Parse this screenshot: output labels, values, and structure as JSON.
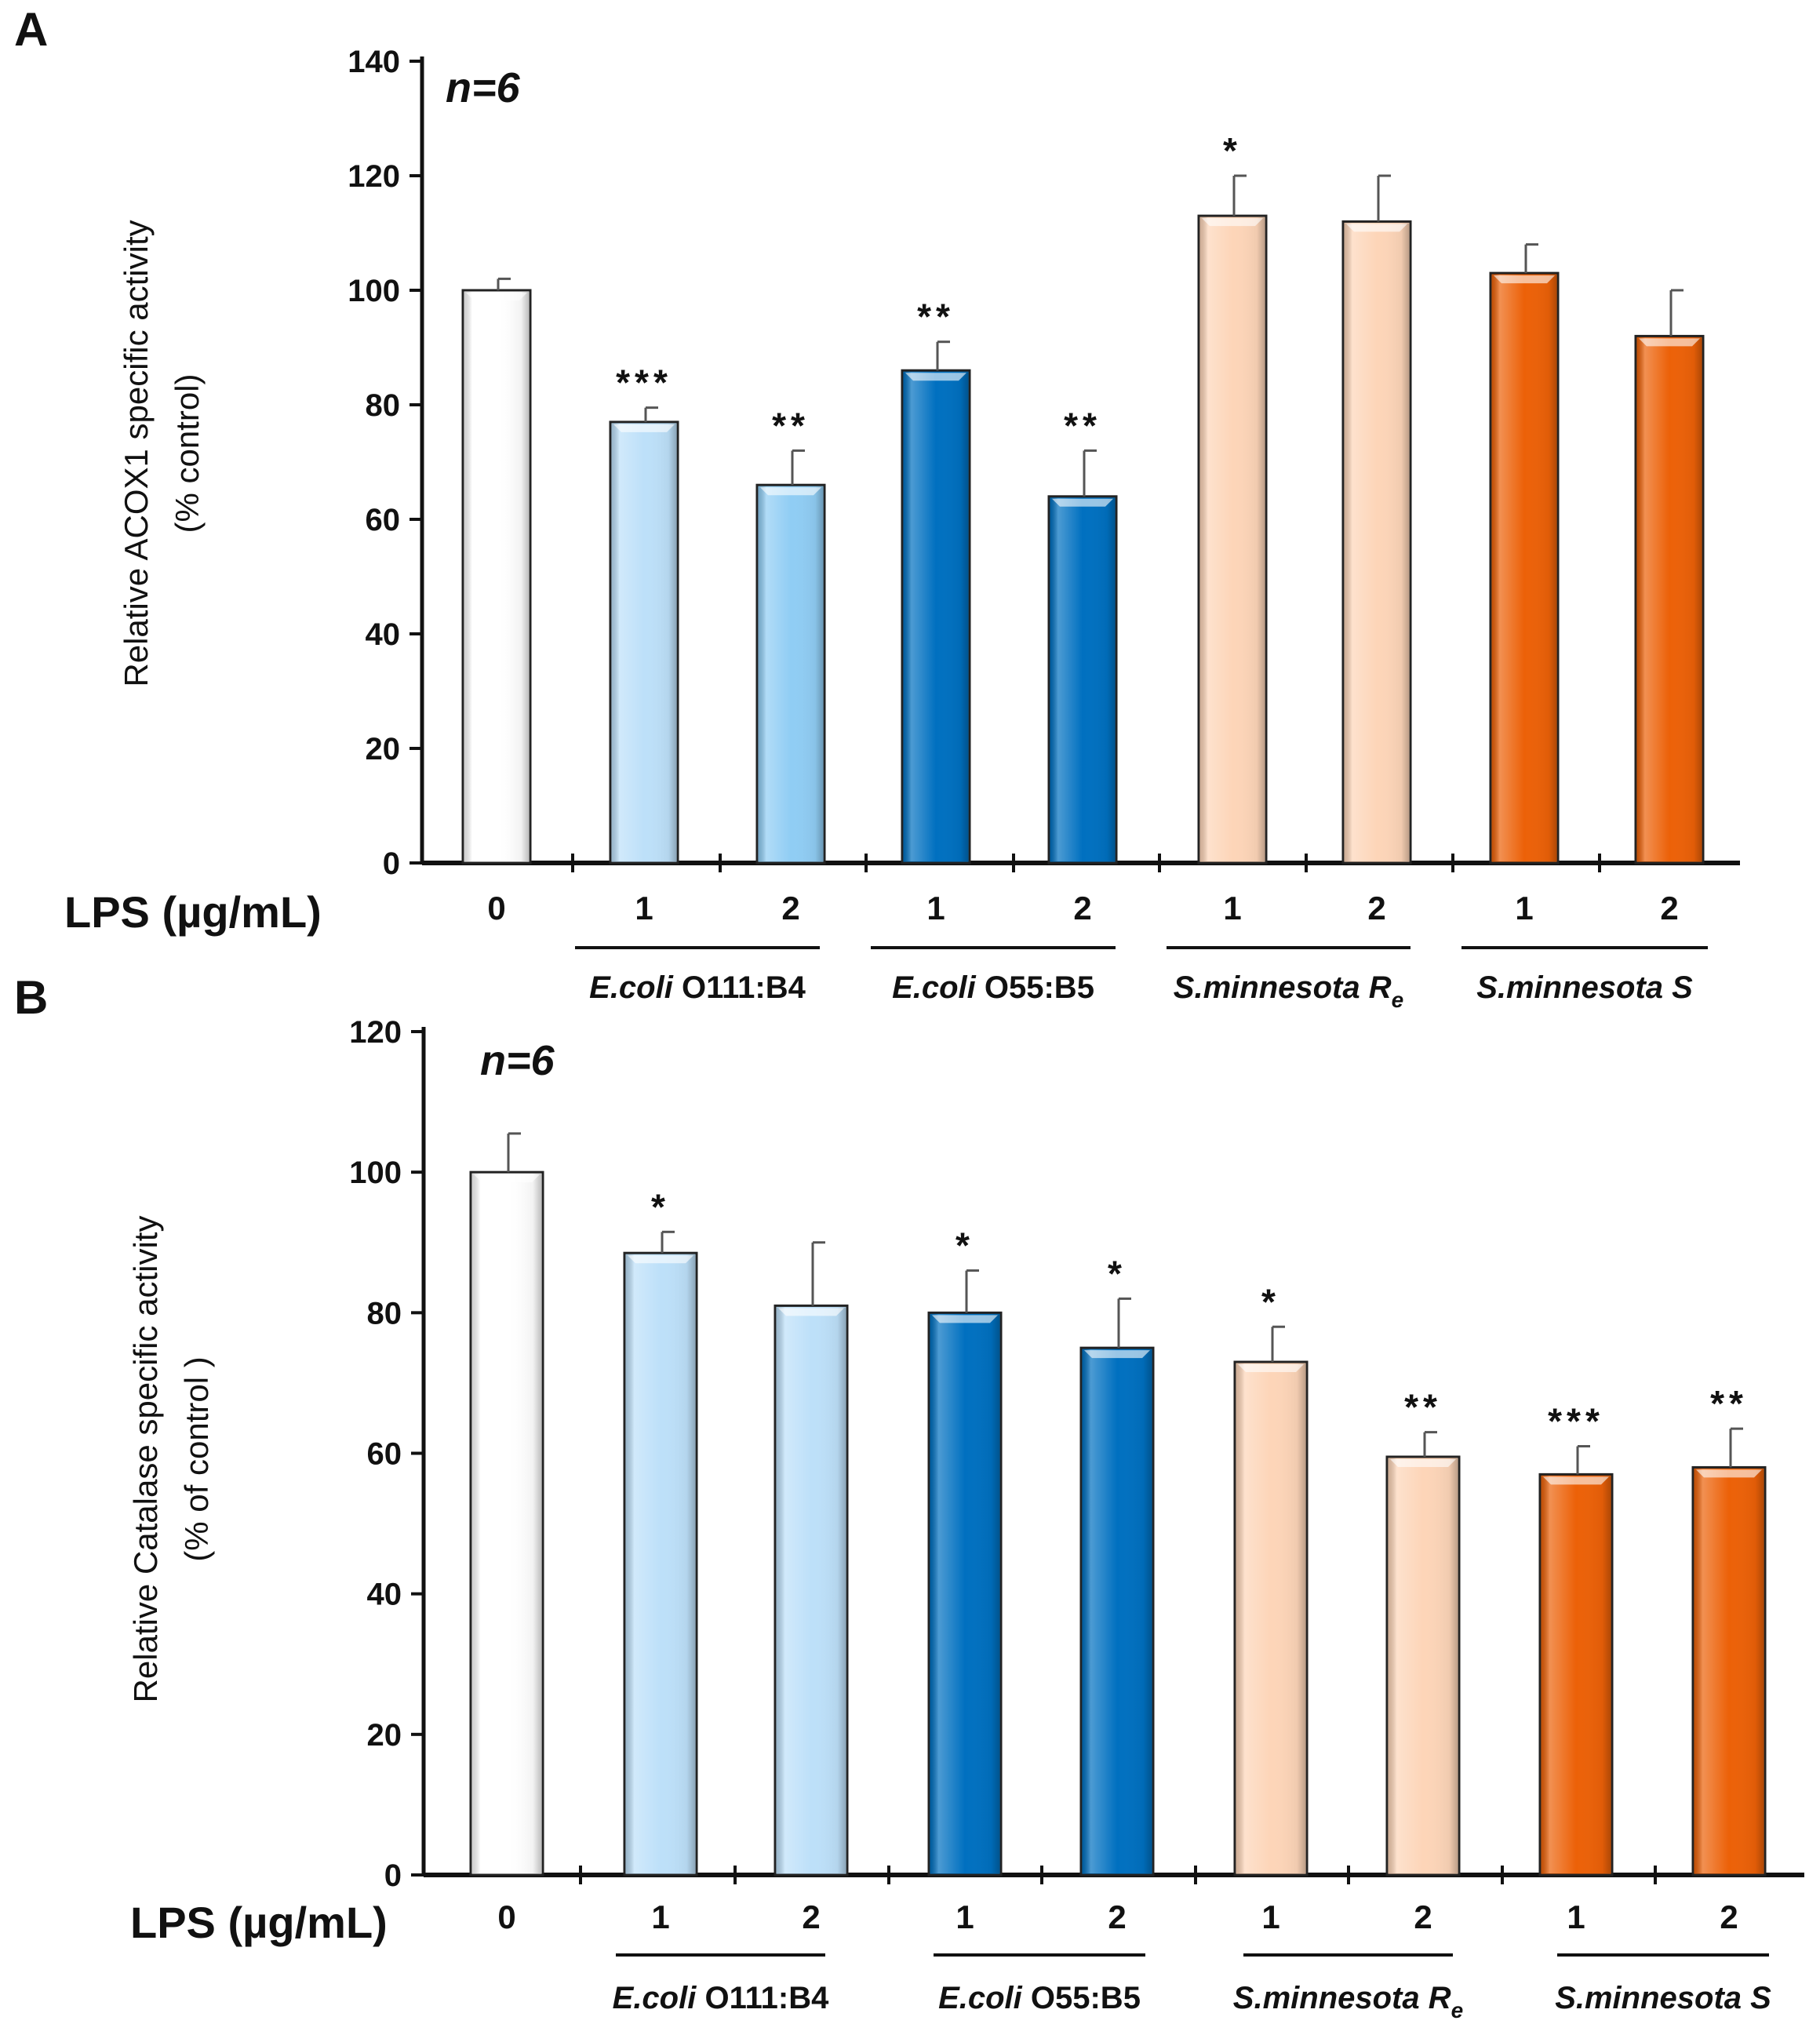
{
  "chart_data": [
    {
      "panel": "A",
      "type": "bar",
      "ylabel_line1": "Relative ACOX1 specific activity",
      "ylabel_line2": "(% control)",
      "xlabel": "LPS (µg/mL)",
      "annotation": "n=6",
      "ylim": [
        0,
        140
      ],
      "yticks": [
        0,
        20,
        40,
        60,
        80,
        100,
        120,
        140
      ],
      "categories": [
        "0",
        "1",
        "2",
        "1",
        "2",
        "1",
        "2",
        "1",
        "2"
      ],
      "values": [
        100,
        77,
        66,
        86,
        64,
        113,
        112,
        103,
        92
      ],
      "errors": [
        2,
        2.5,
        6,
        5,
        8,
        7,
        8,
        5,
        8
      ],
      "significance": [
        "",
        "***",
        "**",
        "**",
        "**",
        "*",
        "",
        "",
        ""
      ],
      "groups": [
        {
          "prefix": "E.coli",
          "suffix": " O111:B4",
          "sub": ""
        },
        {
          "prefix": "E.coli",
          "suffix": " O55:B5",
          "sub": ""
        },
        {
          "prefix": "S.minnesota R",
          "suffix": "",
          "sub": "e"
        },
        {
          "prefix": "S.minnesota S",
          "suffix": "",
          "sub": ""
        }
      ]
    },
    {
      "panel": "B",
      "type": "bar",
      "ylabel_line1": "Relative Catalase specific activity",
      "ylabel_line2": "(% of control )",
      "xlabel": "LPS (µg/mL)",
      "annotation": "n=6",
      "ylim": [
        0,
        120
      ],
      "yticks": [
        0,
        20,
        40,
        60,
        80,
        100,
        120
      ],
      "categories": [
        "0",
        "1",
        "2",
        "1",
        "2",
        "1",
        "2",
        "1",
        "2"
      ],
      "values": [
        100,
        88.5,
        81,
        80,
        75,
        73,
        59.5,
        57,
        58
      ],
      "errors": [
        5.5,
        3,
        9,
        6,
        7,
        5,
        3.5,
        4,
        5.5
      ],
      "significance": [
        "",
        "*",
        "",
        "*",
        "*",
        "*",
        "**",
        "***",
        "**"
      ],
      "groups": [
        {
          "prefix": "E.coli",
          "suffix": " O111:B4",
          "sub": ""
        },
        {
          "prefix": "E.coli",
          "suffix": " O55:B5",
          "sub": ""
        },
        {
          "prefix": "S.minnesota R",
          "suffix": "",
          "sub": "e"
        },
        {
          "prefix": "S.minnesota S",
          "suffix": "",
          "sub": ""
        }
      ]
    }
  ],
  "colors": {
    "control": "#ffffff",
    "ecoli_o111": "#bde0f9",
    "ecoli_o55": "#0070c0",
    "smin_re": "#fdd5b8",
    "smin_s": "#ec6108",
    "axis": "#111111"
  }
}
